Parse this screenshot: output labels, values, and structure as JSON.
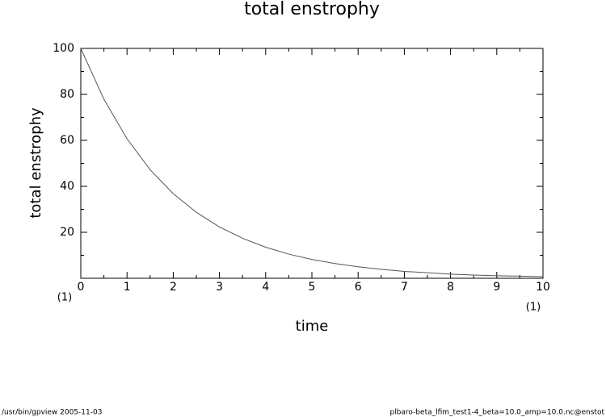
{
  "chart_data": {
    "type": "line",
    "title": "total enstrophy",
    "x_label": "time",
    "y_label": "total enstrophy",
    "x_unit_labels": [
      "(1)",
      "(1)"
    ],
    "x": [
      0,
      0.5,
      1,
      1.5,
      2,
      2.5,
      3,
      3.5,
      4,
      4.5,
      5,
      5.5,
      6,
      6.5,
      7,
      7.5,
      8,
      8.5,
      9,
      9.5,
      10
    ],
    "series": [
      {
        "name": "total enstrophy",
        "color": "#555555",
        "values": [
          100,
          77.9,
          60.7,
          47.2,
          36.8,
          28.7,
          22.3,
          17.4,
          13.5,
          10.5,
          8.2,
          6.4,
          5.0,
          3.9,
          3.0,
          2.4,
          1.8,
          1.4,
          1.1,
          0.9,
          0.7
        ]
      }
    ],
    "xlim": [
      0,
      10
    ],
    "ylim": [
      0,
      100
    ],
    "xticks": [
      0,
      1,
      2,
      3,
      4,
      5,
      6,
      7,
      8,
      9,
      10
    ],
    "yticks": [
      20,
      40,
      60,
      80,
      100
    ],
    "xminorticks": [
      0.5,
      1.5,
      2.5,
      3.5,
      4.5,
      5.5,
      6.5,
      7.5,
      8.5,
      9.5
    ],
    "yminorticks": [
      10,
      30,
      50,
      70,
      90
    ],
    "grid": false
  },
  "footer": {
    "left": "/usr/bin/gpview   2005-11-03",
    "right": "plbaro-beta_lfim_test1-4_beta=10.0_amp=10.0.nc@enstot"
  }
}
